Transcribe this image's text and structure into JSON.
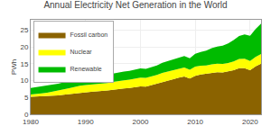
{
  "chart_data": {
    "type": "area",
    "stacked": true,
    "title": "Annual Electricity Net Generation in the World",
    "ylabel": "PWh",
    "xlim": [
      1980,
      2022
    ],
    "ylim": [
      0,
      28
    ],
    "yticks": [
      0,
      5,
      10,
      15,
      20,
      25
    ],
    "xticks": [
      1980,
      1990,
      2000,
      2010,
      2020
    ],
    "grid": true,
    "legend": "upper left",
    "x": [
      1980,
      1981,
      1982,
      1983,
      1984,
      1985,
      1986,
      1987,
      1988,
      1989,
      1990,
      1991,
      1992,
      1993,
      1994,
      1995,
      1996,
      1997,
      1998,
      1999,
      2000,
      2001,
      2002,
      2003,
      2004,
      2005,
      2006,
      2007,
      2008,
      2009,
      2010,
      2011,
      2012,
      2013,
      2014,
      2015,
      2016,
      2017,
      2018,
      2019,
      2020,
      2021,
      2022
    ],
    "series": [
      {
        "name": "Fossil carbon",
        "color": "#8B6300",
        "values": [
          5.2,
          5.3,
          5.2,
          5.3,
          5.5,
          5.6,
          5.8,
          6.0,
          6.3,
          6.5,
          6.6,
          6.7,
          6.8,
          6.9,
          7.1,
          7.3,
          7.6,
          7.7,
          7.8,
          8.0,
          8.3,
          8.2,
          8.6,
          9.1,
          9.6,
          10.0,
          10.4,
          10.9,
          11.2,
          10.6,
          11.4,
          11.8,
          12.1,
          12.4,
          12.5,
          12.4,
          12.7,
          13.1,
          13.7,
          13.7,
          13.1,
          14.2,
          15.0
        ]
      },
      {
        "name": "Nuclear",
        "color": "#FFFF00",
        "values": [
          0.68,
          0.83,
          1.0,
          1.1,
          1.3,
          1.5,
          1.6,
          1.75,
          1.9,
          2.0,
          2.1,
          2.1,
          2.1,
          2.2,
          2.2,
          2.3,
          2.35,
          2.4,
          2.45,
          2.5,
          2.6,
          2.6,
          2.6,
          2.6,
          2.7,
          2.75,
          2.8,
          2.7,
          2.7,
          2.6,
          2.75,
          2.6,
          2.35,
          2.4,
          2.5,
          2.55,
          2.5,
          2.6,
          2.7,
          2.8,
          2.7,
          2.8,
          2.9
        ]
      },
      {
        "name": "Renewable",
        "color": "#00BB00",
        "values": [
          1.9,
          1.9,
          1.95,
          2.0,
          2.0,
          2.0,
          2.1,
          2.15,
          2.15,
          2.15,
          2.2,
          2.25,
          2.3,
          2.35,
          2.4,
          2.45,
          2.5,
          2.55,
          2.6,
          2.65,
          2.7,
          2.7,
          2.75,
          2.8,
          2.95,
          3.0,
          3.1,
          3.2,
          3.4,
          3.4,
          3.8,
          4.1,
          4.4,
          4.8,
          5.1,
          5.4,
          5.8,
          6.3,
          6.8,
          7.2,
          7.5,
          8.3,
          9.0
        ]
      }
    ]
  }
}
